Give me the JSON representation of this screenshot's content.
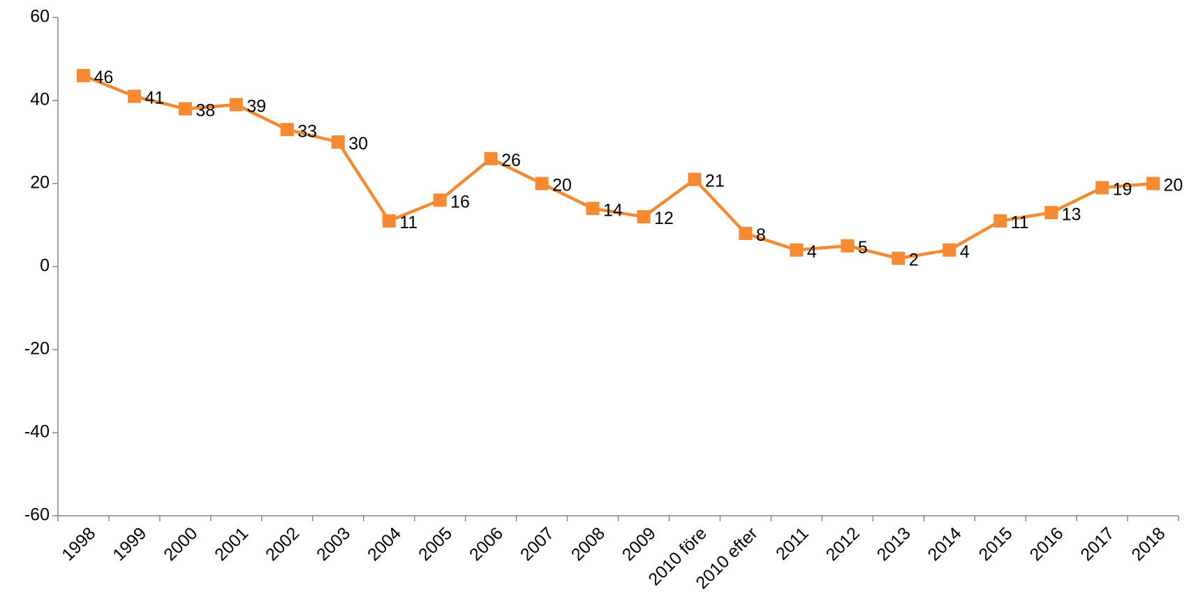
{
  "chart_data": {
    "type": "line",
    "categories": [
      "1998",
      "1999",
      "2000",
      "2001",
      "2002",
      "2003",
      "2004",
      "2005",
      "2006",
      "2007",
      "2008",
      "2009",
      "2010 före",
      "2010 efter",
      "2011",
      "2012",
      "2013",
      "2014",
      "2015",
      "2016",
      "2017",
      "2018"
    ],
    "values": [
      46,
      41,
      38,
      39,
      33,
      30,
      11,
      16,
      26,
      20,
      14,
      12,
      21,
      8,
      4,
      5,
      2,
      4,
      11,
      13,
      19,
      20
    ],
    "color": "#f58a32",
    "ylim": [
      -60,
      60
    ],
    "yticks": [
      -60,
      -40,
      -20,
      0,
      20,
      40,
      60
    ]
  }
}
